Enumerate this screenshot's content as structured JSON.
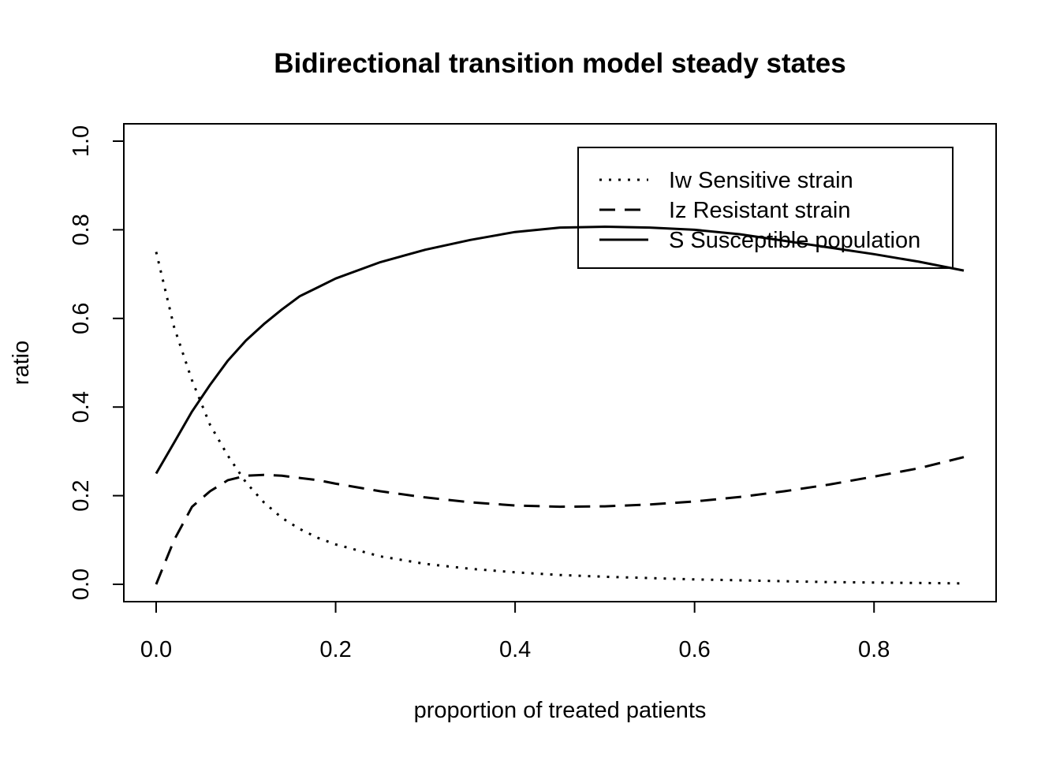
{
  "chart_data": {
    "type": "line",
    "title": "Bidirectional transition model steady states",
    "xlabel": "proportion of treated patients",
    "ylabel": "ratio",
    "xlim": [
      0.0,
      0.9
    ],
    "ylim": [
      0.0,
      1.0
    ],
    "xticks": [
      "0.0",
      "0.2",
      "0.4",
      "0.6",
      "0.8"
    ],
    "yticks": [
      "0.0",
      "0.2",
      "0.4",
      "0.6",
      "0.8",
      "1.0"
    ],
    "grid": false,
    "legend_position": "top-right",
    "x": [
      0.0,
      0.02,
      0.04,
      0.06,
      0.08,
      0.1,
      0.12,
      0.14,
      0.16,
      0.18,
      0.2,
      0.25,
      0.3,
      0.35,
      0.4,
      0.45,
      0.5,
      0.55,
      0.6,
      0.65,
      0.7,
      0.75,
      0.8,
      0.85,
      0.9
    ],
    "series": [
      {
        "name": "Iw Sensitive strain",
        "dash": "dotted",
        "values": [
          0.75,
          0.58,
          0.46,
          0.36,
          0.29,
          0.23,
          0.185,
          0.15,
          0.125,
          0.105,
          0.09,
          0.063,
          0.046,
          0.035,
          0.027,
          0.021,
          0.017,
          0.014,
          0.011,
          0.009,
          0.007,
          0.005,
          0.004,
          0.003,
          0.002
        ]
      },
      {
        "name": "Iz Resistant strain",
        "dash": "dashed",
        "values": [
          0.0,
          0.1,
          0.175,
          0.21,
          0.235,
          0.245,
          0.247,
          0.245,
          0.24,
          0.235,
          0.227,
          0.21,
          0.196,
          0.185,
          0.178,
          0.175,
          0.176,
          0.18,
          0.187,
          0.197,
          0.21,
          0.225,
          0.243,
          0.262,
          0.287
        ]
      },
      {
        "name": "S Susceptible population",
        "dash": "solid",
        "values": [
          0.25,
          0.32,
          0.39,
          0.45,
          0.505,
          0.55,
          0.587,
          0.62,
          0.65,
          0.67,
          0.69,
          0.727,
          0.755,
          0.777,
          0.795,
          0.805,
          0.807,
          0.805,
          0.8,
          0.79,
          0.775,
          0.76,
          0.745,
          0.728,
          0.708
        ]
      }
    ]
  }
}
